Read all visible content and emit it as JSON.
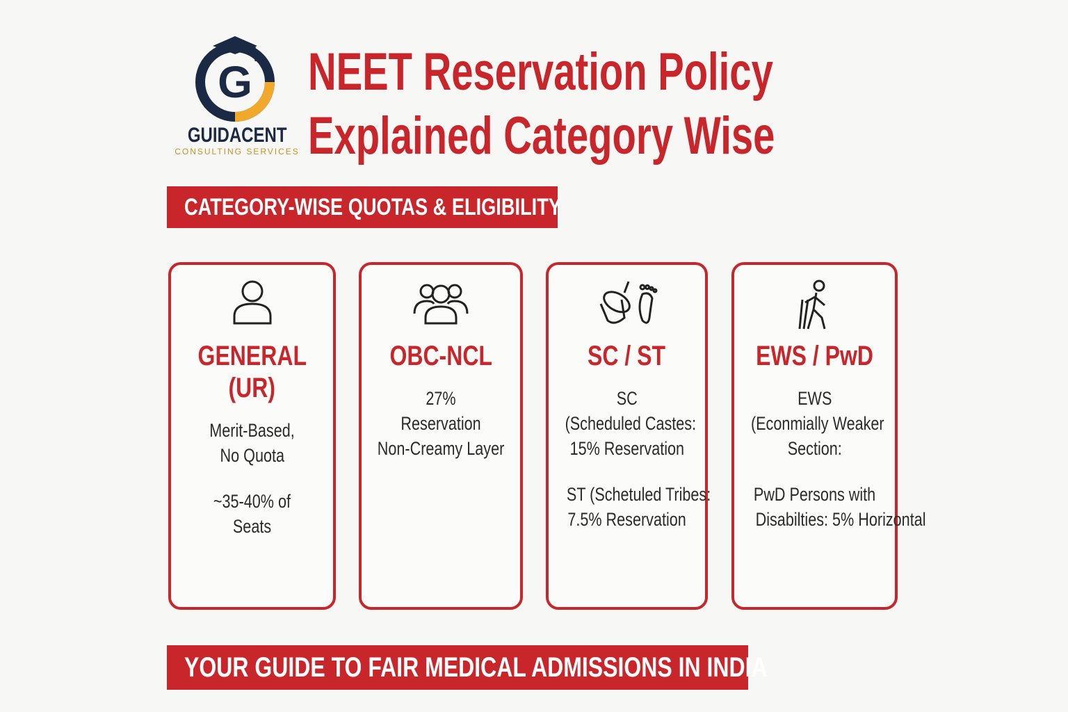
{
  "header": {
    "logo_letter": "G",
    "brand": "GUIDACENT",
    "brand_sub": "CONSULTING SERVICES",
    "title_lines": [
      "NEET Reservation Policy",
      "Explained Category Wise"
    ]
  },
  "section_banner": "CATEGORY-WISE QUOTAS & ELIGIBILITY",
  "cards": [
    {
      "title_lines": [
        "GENERAL",
        "(UR)"
      ],
      "paragraphs": [
        [
          "Merit-Based,",
          "No Quota"
        ],
        [
          "~35-40% of",
          "Seats"
        ]
      ]
    },
    {
      "title_lines": [
        "OBC-NCL"
      ],
      "paragraphs": [
        [
          "27%",
          "Reservation",
          "Non-Creamy Layer"
        ]
      ]
    },
    {
      "title_lines": [
        "SC  / ST"
      ],
      "paragraphs": [
        [
          "SC",
          "(Scheduled Castes:",
          "15% Reservation"
        ],
        [
          "ST (Schetuled Tribes:",
          "7.5% Reservation"
        ]
      ]
    },
    {
      "title_lines": [
        "EWS / PwD"
      ],
      "paragraphs": [
        [
          "EWS",
          "(Econmially Weaker",
          "Section:"
        ],
        [
          "PwD Persons with",
          "Disabilties: 5% Horizontal"
        ]
      ]
    }
  ],
  "footer_banner": "YOUR GUIDE TO FAIR MEDICAL ADMISSIONS IN INDIA"
}
